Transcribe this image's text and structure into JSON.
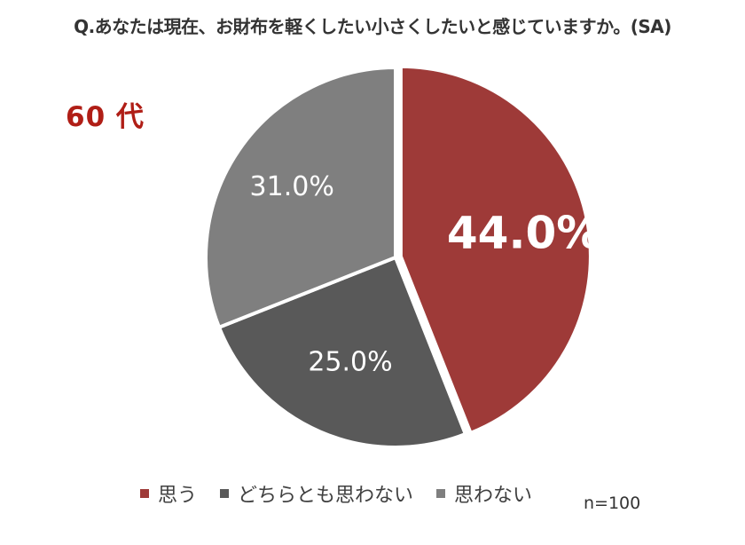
{
  "question": "Q.あなたは現在、お財布を軽くしたい小さくしたいと感じていますか。(SA)",
  "age_group": "60 代",
  "sample_size": "n=100",
  "chart_data": {
    "type": "pie",
    "title": "Q.あなたは現在、お財布を軽くしたい小さくしたいと感じていますか。(SA)",
    "categories": [
      "思う",
      "どちらとも思わない",
      "思わない"
    ],
    "values": [
      44.0,
      25.0,
      31.0
    ],
    "labels": [
      "44.0%",
      "25.0%",
      "31.0%"
    ],
    "colors": [
      "#9e3a38",
      "#595959",
      "#7f7f7f"
    ],
    "legend": "bottom",
    "start": "top",
    "direction": "clockwise"
  }
}
